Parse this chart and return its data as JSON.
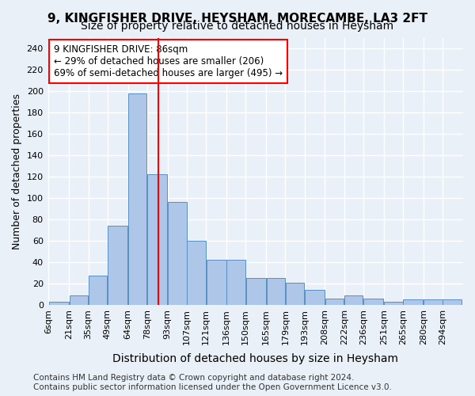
{
  "title": "9, KINGFISHER DRIVE, HEYSHAM, MORECAMBE, LA3 2FT",
  "subtitle": "Size of property relative to detached houses in Heysham",
  "xlabel": "Distribution of detached houses by size in Heysham",
  "ylabel": "Number of detached properties",
  "footer_line1": "Contains HM Land Registry data © Crown copyright and database right 2024.",
  "footer_line2": "Contains public sector information licensed under the Open Government Licence v3.0.",
  "annotation_line1": "9 KINGFISHER DRIVE: 86sqm",
  "annotation_line2": "← 29% of detached houses are smaller (206)",
  "annotation_line3": "69% of semi-detached houses are larger (495) →",
  "property_size": 86,
  "bar_labels": [
    "6sqm",
    "21sqm",
    "35sqm",
    "49sqm",
    "64sqm",
    "78sqm",
    "93sqm",
    "107sqm",
    "121sqm",
    "136sqm",
    "150sqm",
    "165sqm",
    "179sqm",
    "193sqm",
    "208sqm",
    "222sqm",
    "236sqm",
    "251sqm",
    "265sqm",
    "280sqm",
    "294sqm"
  ],
  "bar_values": [
    3,
    9,
    27,
    74,
    198,
    122,
    96,
    60,
    42,
    42,
    25,
    25,
    21,
    14,
    6,
    9,
    6,
    3,
    5,
    5,
    5
  ],
  "bar_edges": [
    6,
    21,
    35,
    49,
    64,
    78,
    93,
    107,
    121,
    136,
    150,
    165,
    179,
    193,
    208,
    222,
    236,
    251,
    265,
    280,
    294,
    308
  ],
  "bar_color": "#aec6e8",
  "bar_edgecolor": "#5a8fc2",
  "vline_x": 86,
  "vline_color": "red",
  "bg_color": "#eaf0f8",
  "plot_bg_color": "#eaf0f8",
  "grid_color": "white",
  "ylim": [
    0,
    250
  ],
  "yticks": [
    0,
    20,
    40,
    60,
    80,
    100,
    120,
    140,
    160,
    180,
    200,
    220,
    240
  ],
  "annotation_box_color": "white",
  "annotation_border_color": "red",
  "title_fontsize": 11,
  "subtitle_fontsize": 10,
  "xlabel_fontsize": 10,
  "ylabel_fontsize": 9,
  "tick_fontsize": 8,
  "footer_fontsize": 7.5,
  "annotation_fontsize": 8.5
}
